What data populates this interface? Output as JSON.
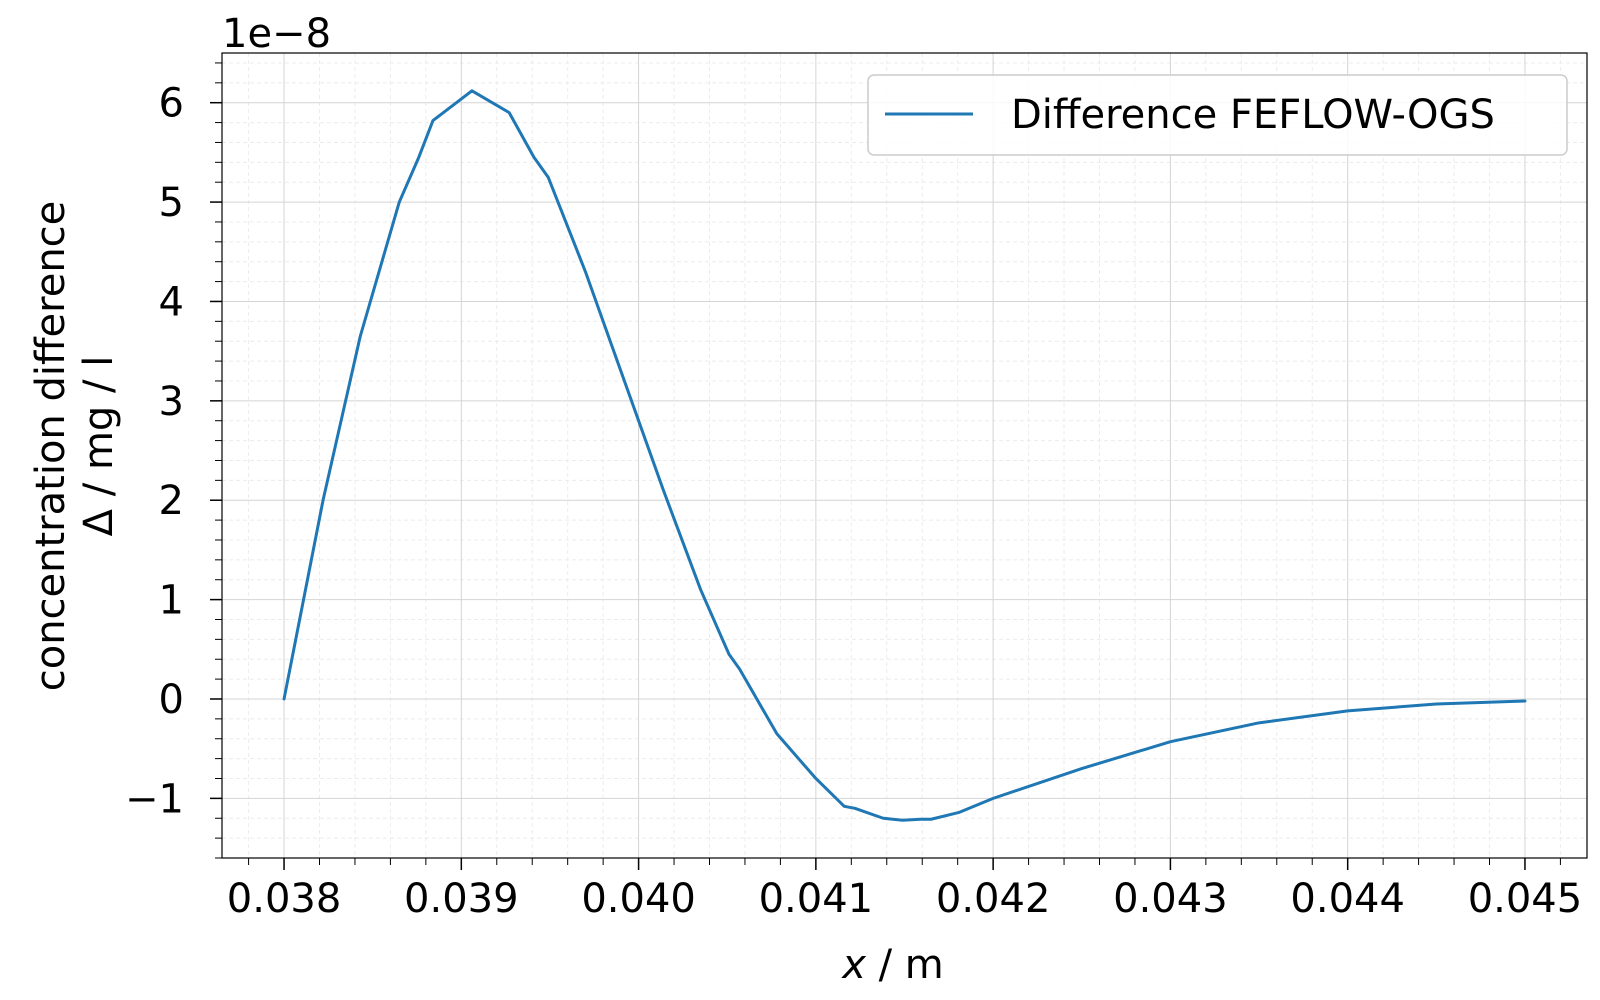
{
  "chart_data": {
    "type": "line",
    "xlabel_var": "x",
    "xlabel_unit": " / m",
    "ylabel_line1": "concentration difference",
    "ylabel_line2": "Δ / mg / l",
    "y_offset_text": "1e−8",
    "xlim": [
      0.03765,
      0.04535
    ],
    "ylim": [
      -1.6,
      6.5
    ],
    "x_ticks": [
      0.038,
      0.039,
      0.04,
      0.041,
      0.042,
      0.043,
      0.044,
      0.045
    ],
    "x_tick_labels": [
      "0.038",
      "0.039",
      "0.040",
      "0.041",
      "0.042",
      "0.043",
      "0.044",
      "0.045"
    ],
    "y_ticks": [
      -1,
      0,
      1,
      2,
      3,
      4,
      5,
      6
    ],
    "y_tick_labels": [
      "−1",
      "0",
      "1",
      "2",
      "3",
      "4",
      "5",
      "6"
    ],
    "grid": true,
    "minor_grid": true,
    "legend_position": "top-right",
    "series": [
      {
        "name": "Difference FEFLOW-OGS",
        "color": "#1f77b4",
        "x": [
          0.038,
          0.03822,
          0.03843,
          0.03865,
          0.03876,
          0.03884,
          0.03906,
          0.03927,
          0.03941,
          0.03949,
          0.0397,
          0.03992,
          0.04014,
          0.04035,
          0.04051,
          0.04057,
          0.04078,
          0.041,
          0.04116,
          0.04122,
          0.04138,
          0.04149,
          0.04159,
          0.04165,
          0.04181,
          0.042,
          0.0425,
          0.043,
          0.0435,
          0.044,
          0.0445,
          0.045
        ],
        "values": [
          0.0,
          2.0,
          3.65,
          5.0,
          5.45,
          5.82,
          6.12,
          5.9,
          5.45,
          5.25,
          4.3,
          3.2,
          2.1,
          1.1,
          0.45,
          0.3,
          -0.35,
          -0.8,
          -1.08,
          -1.1,
          -1.2,
          -1.22,
          -1.21,
          -1.21,
          -1.14,
          -1.0,
          -0.7,
          -0.43,
          -0.24,
          -0.12,
          -0.05,
          -0.02
        ]
      }
    ]
  }
}
